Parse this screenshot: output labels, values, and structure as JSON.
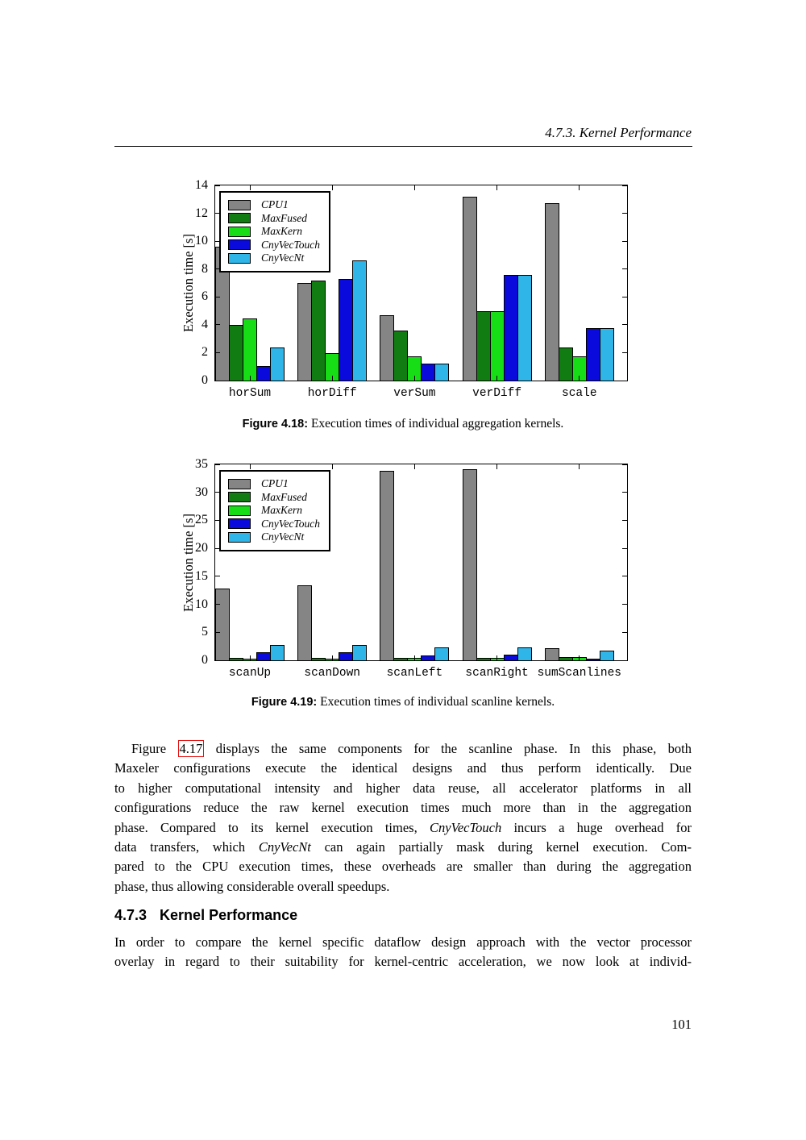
{
  "page": {
    "header": "4.7.3. Kernel Performance",
    "page_number": "101"
  },
  "figures": [
    {
      "caption_label": "Figure 4.18:",
      "caption_text": " Execution times of individual aggregation kernels."
    },
    {
      "caption_label": "Figure 4.19:",
      "caption_text": " Execution times of individual scanline kernels."
    }
  ],
  "section": {
    "number": "4.7.3",
    "title": "Kernel Performance"
  },
  "paragraphs": {
    "p1_lines": [
      {
        "indent": true,
        "justify": true,
        "segments": [
          {
            "t": "Figure "
          },
          {
            "t": "4.17",
            "s": "link"
          },
          {
            "t": " displays the same components for the scanline phase.  In this phase, both"
          }
        ]
      },
      {
        "justify": true,
        "segments": [
          {
            "t": "Maxeler configurations execute the identical designs and thus perform identically.  Due"
          }
        ]
      },
      {
        "justify": true,
        "segments": [
          {
            "t": "to higher computational intensity and higher data reuse, all accelerator platforms in all"
          }
        ]
      },
      {
        "justify": true,
        "segments": [
          {
            "t": "configurations reduce the raw kernel execution times much more than in the aggregation"
          }
        ]
      },
      {
        "justify": true,
        "segments": [
          {
            "t": "phase.  Compared to its kernel execution times, "
          },
          {
            "t": "CnyVecTouch",
            "s": "it"
          },
          {
            "t": " incurs a huge overhead for"
          }
        ]
      },
      {
        "justify": true,
        "segments": [
          {
            "t": "data transfers, which "
          },
          {
            "t": "CnyVecNt",
            "s": "it"
          },
          {
            "t": " can again partially mask during kernel execution.  Com-"
          }
        ]
      },
      {
        "justify": true,
        "segments": [
          {
            "t": "pared to the CPU execution times, these overheads are smaller than during the aggregation"
          }
        ]
      },
      {
        "justify": false,
        "segments": [
          {
            "t": "phase, thus allowing considerable overall speedups."
          }
        ]
      }
    ],
    "p2_lines": [
      {
        "justify": true,
        "segments": [
          {
            "t": "In order to compare the kernel specific dataflow design approach with the vector processor"
          }
        ]
      },
      {
        "justify": true,
        "segments": [
          {
            "t": "overlay in regard to their suitability for kernel-centric acceleration, we now look at individ-"
          }
        ]
      }
    ]
  },
  "chart_data": [
    {
      "type": "bar",
      "title": "",
      "xlabel": "",
      "ylabel": "Execution time [s]",
      "ylim": [
        0,
        14
      ],
      "yticks": [
        0,
        2,
        4,
        6,
        8,
        10,
        12,
        14
      ],
      "grid": false,
      "legend_position": "upper left",
      "categories": [
        "horSum",
        "horDiff",
        "verSum",
        "verDiff",
        "scale"
      ],
      "series": [
        {
          "name": "CPU1",
          "color": "#858585",
          "values": [
            9.6,
            7.0,
            4.7,
            13.2,
            12.7
          ]
        },
        {
          "name": "MaxFused",
          "color": "#117c11",
          "values": [
            4.0,
            7.15,
            3.6,
            5.0,
            2.4
          ]
        },
        {
          "name": "MaxKern",
          "color": "#17dd17",
          "values": [
            4.45,
            1.95,
            1.75,
            5.0,
            1.75
          ]
        },
        {
          "name": "CnyVecTouch",
          "color": "#0a0add",
          "values": [
            1.05,
            7.3,
            1.2,
            7.6,
            3.75
          ]
        },
        {
          "name": "CnyVecNt",
          "color": "#30b5e8",
          "values": [
            2.35,
            8.6,
            1.2,
            7.6,
            3.75
          ]
        }
      ]
    },
    {
      "type": "bar",
      "title": "",
      "xlabel": "",
      "ylabel": "Execution time [s]",
      "ylim": [
        0,
        35
      ],
      "yticks": [
        0,
        5,
        10,
        15,
        20,
        25,
        30,
        35
      ],
      "grid": false,
      "legend_position": "upper left",
      "categories": [
        "scanUp",
        "scanDown",
        "scanLeft",
        "scanRight",
        "sumScanlines"
      ],
      "series": [
        {
          "name": "CPU1",
          "color": "#858585",
          "values": [
            12.8,
            13.4,
            33.8,
            34.1,
            2.1
          ]
        },
        {
          "name": "MaxFused",
          "color": "#117c11",
          "values": [
            0.4,
            0.4,
            0.4,
            0.45,
            0.6
          ]
        },
        {
          "name": "MaxKern",
          "color": "#17dd17",
          "values": [
            0.35,
            0.35,
            0.4,
            0.45,
            0.6
          ]
        },
        {
          "name": "CnyVecTouch",
          "color": "#0a0add",
          "values": [
            1.5,
            1.5,
            0.9,
            0.95,
            0.3
          ]
        },
        {
          "name": "CnyVecNt",
          "color": "#30b5e8",
          "values": [
            2.8,
            2.8,
            2.3,
            2.3,
            1.7
          ]
        }
      ]
    }
  ]
}
